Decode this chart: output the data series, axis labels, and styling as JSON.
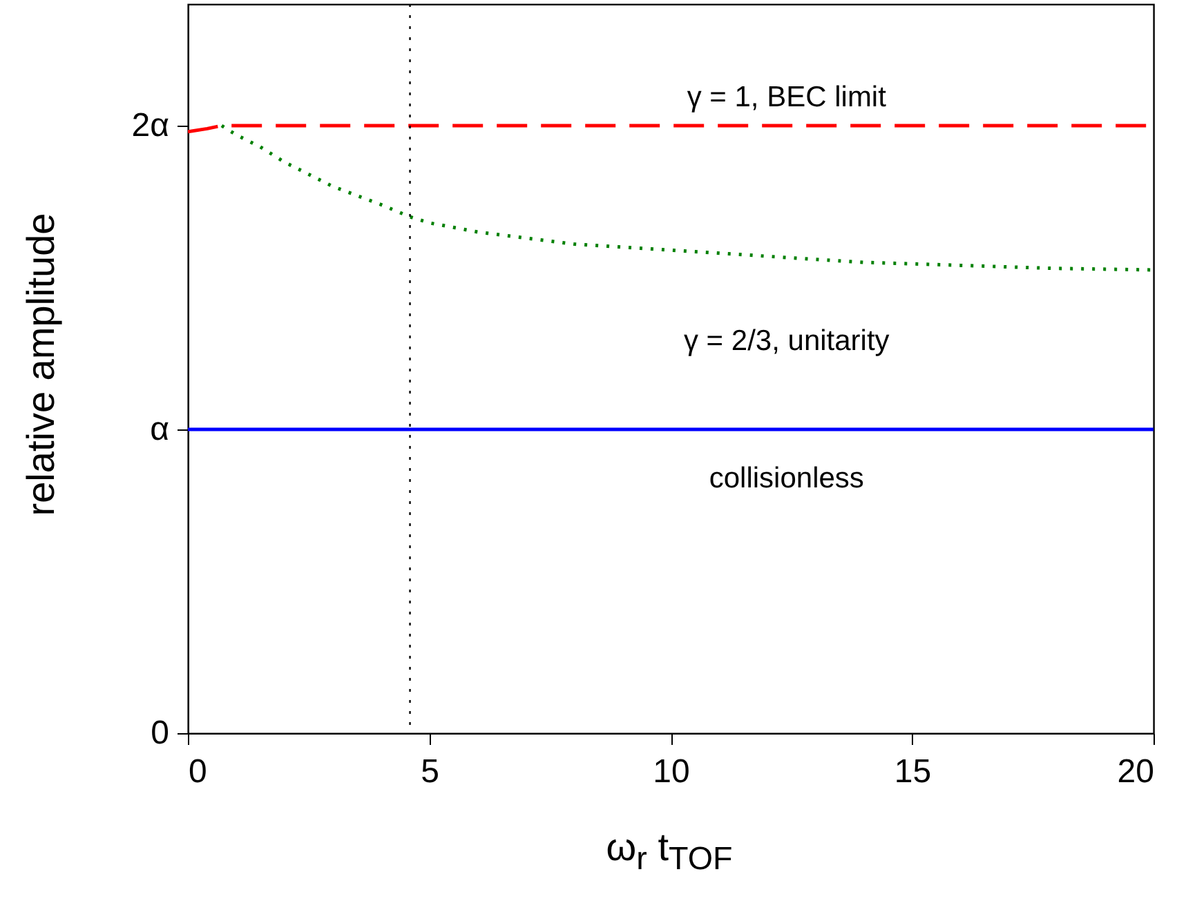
{
  "chart_data": {
    "type": "line",
    "xlabel": "ω$_{r}$ t$_{TOF}$",
    "ylabel": "relative amplitude",
    "xlim": [
      0,
      20
    ],
    "xticks": [
      0,
      5,
      10,
      15,
      20
    ],
    "ylim": [
      0,
      2.4
    ],
    "yticks": [
      {
        "value": 0,
        "label": "0"
      },
      {
        "value": 1,
        "label": "α"
      },
      {
        "value": 2,
        "label": "2α"
      }
    ],
    "grid": false,
    "marker": "none",
    "series": [
      {
        "name": "γ = 1, BEC limit",
        "color": "#ff0000",
        "line_style": "dashed",
        "x": [
          0,
          0.4,
          0.7,
          5,
          10,
          15,
          20
        ],
        "values": [
          1.98,
          1.99,
          2.0,
          2.0,
          2.0,
          2.0,
          2.0
        ]
      },
      {
        "name": "γ = 2/3, unitarity",
        "color": "#008000",
        "line_style": "dotted",
        "x": [
          0.7,
          1,
          1.5,
          2,
          2.5,
          3,
          3.5,
          4,
          4.6,
          5,
          6,
          7,
          8,
          10,
          12,
          14,
          16,
          18,
          20
        ],
        "values": [
          2.0,
          1.97,
          1.93,
          1.88,
          1.84,
          1.8,
          1.77,
          1.74,
          1.7,
          1.68,
          1.65,
          1.63,
          1.61,
          1.59,
          1.57,
          1.55,
          1.54,
          1.53,
          1.525
        ]
      },
      {
        "name": "collisionless",
        "color": "#0000ff",
        "line_style": "solid",
        "x": [
          0,
          5,
          10,
          15,
          20
        ],
        "values": [
          1,
          1,
          1,
          1,
          1
        ]
      }
    ],
    "ref_lines": [
      {
        "axis": "x",
        "value": 4.6,
        "color": "#000000",
        "line_style": "dotted"
      }
    ]
  }
}
